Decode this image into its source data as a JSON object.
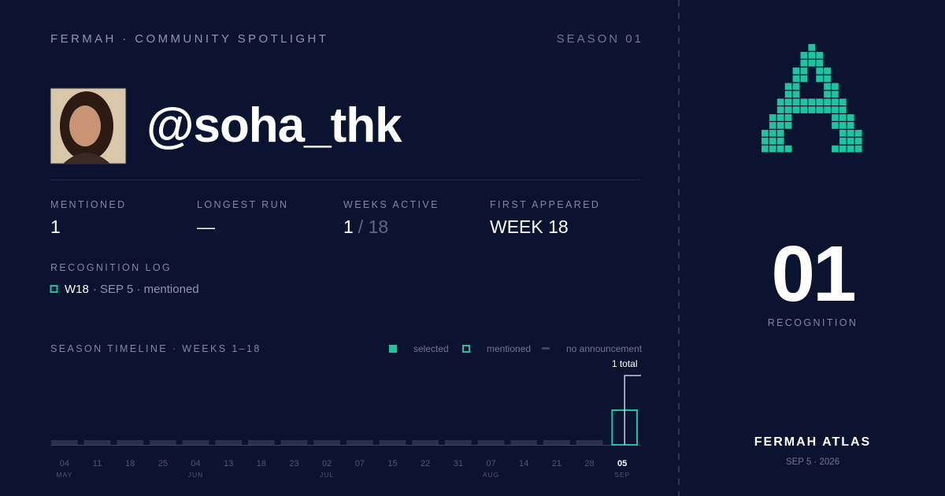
{
  "header": {
    "brand": "FERMAH · COMMUNITY SPOTLIGHT",
    "season": "SEASON 01"
  },
  "profile": {
    "handle": "@soha_thk"
  },
  "stats": [
    {
      "label": "MENTIONED",
      "value": "1"
    },
    {
      "label": "LONGEST RUN",
      "value": "—"
    },
    {
      "label": "WEEKS ACTIVE",
      "value": "1",
      "total": "/ 18"
    },
    {
      "label": "FIRST APPEARED",
      "value": "WEEK 18"
    }
  ],
  "log": {
    "title": "RECOGNITION LOG",
    "entries": [
      {
        "week": "W18",
        "detail": "· SEP 5 · mentioned",
        "status": "mentioned"
      }
    ]
  },
  "timeline": {
    "title": "SEASON TIMELINE · WEEKS 1–18",
    "legend": [
      {
        "label": "selected",
        "status": "selected"
      },
      {
        "label": "mentioned",
        "status": "mentioned"
      },
      {
        "label": "no announcement",
        "status": "none"
      }
    ],
    "annotation": "1 total",
    "weeks": [
      {
        "day": "04",
        "month": "MAY",
        "status": "none"
      },
      {
        "day": "11",
        "month": null,
        "status": "none"
      },
      {
        "day": "18",
        "month": null,
        "status": "none"
      },
      {
        "day": "25",
        "month": null,
        "status": "none"
      },
      {
        "day": "04",
        "month": "JUN",
        "status": "none"
      },
      {
        "day": "13",
        "month": null,
        "status": "none"
      },
      {
        "day": "18",
        "month": null,
        "status": "none"
      },
      {
        "day": "23",
        "month": null,
        "status": "none"
      },
      {
        "day": "02",
        "month": "JUL",
        "status": "none"
      },
      {
        "day": "07",
        "month": null,
        "status": "none"
      },
      {
        "day": "15",
        "month": null,
        "status": "none"
      },
      {
        "day": "22",
        "month": null,
        "status": "none"
      },
      {
        "day": "31",
        "month": null,
        "status": "none"
      },
      {
        "day": "07",
        "month": "AUG",
        "status": "none"
      },
      {
        "day": "14",
        "month": null,
        "status": "none"
      },
      {
        "day": "21",
        "month": null,
        "status": "none"
      },
      {
        "day": "28",
        "month": null,
        "status": "none"
      },
      {
        "day": "05",
        "month": "SEP",
        "status": "mentioned"
      }
    ]
  },
  "side": {
    "count": "01",
    "count_label": "RECOGNITION",
    "brand": "FERMAH ATLAS",
    "date": "SEP 5 · 2026"
  }
}
